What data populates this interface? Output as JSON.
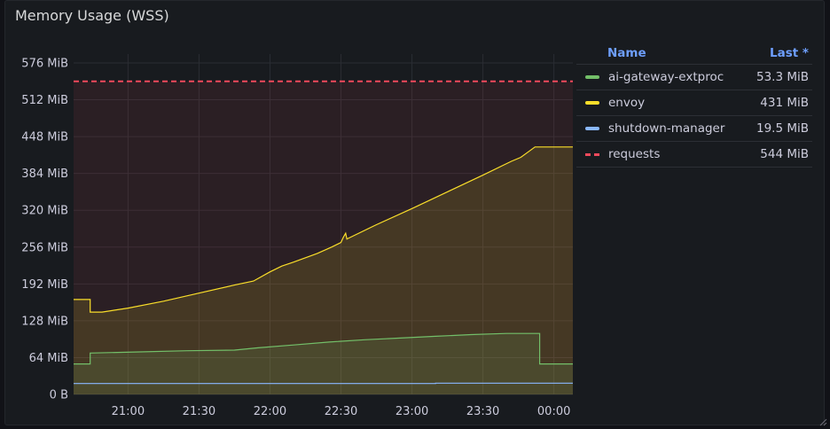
{
  "panel": {
    "title": "Memory Usage (WSS)"
  },
  "legend": {
    "name_header": "Name",
    "last_header": "Last *",
    "items": [
      {
        "name": "ai-gateway-extproc",
        "last": "53.3 MiB",
        "color": "#73bf69",
        "style": "solid"
      },
      {
        "name": "envoy",
        "last": "431 MiB",
        "color": "#fade2a",
        "style": "solid"
      },
      {
        "name": "shutdown-manager",
        "last": "19.5 MiB",
        "color": "#8ab8ff",
        "style": "solid"
      },
      {
        "name": "requests",
        "last": "544 MiB",
        "color": "#f2495c",
        "style": "dashed"
      }
    ]
  },
  "chart_data": {
    "type": "line",
    "title": "Memory Usage (WSS)",
    "ylim": [
      0,
      576
    ],
    "y_unit": "MiB",
    "y_ticks": [
      {
        "v": 0,
        "label": "0 B"
      },
      {
        "v": 64,
        "label": "64 MiB"
      },
      {
        "v": 128,
        "label": "128 MiB"
      },
      {
        "v": 192,
        "label": "192 MiB"
      },
      {
        "v": 256,
        "label": "256 MiB"
      },
      {
        "v": 320,
        "label": "320 MiB"
      },
      {
        "v": 384,
        "label": "384 MiB"
      },
      {
        "v": 448,
        "label": "448 MiB"
      },
      {
        "v": 512,
        "label": "512 MiB"
      },
      {
        "v": 576,
        "label": "576 MiB"
      }
    ],
    "x_ticks": [
      "21:00",
      "21:30",
      "22:00",
      "22:30",
      "23:00",
      "23:30",
      "00:00"
    ],
    "x_tick_minutes": [
      60,
      90,
      120,
      150,
      180,
      210,
      240
    ],
    "xlim_minutes": [
      37,
      248
    ],
    "series": [
      {
        "name": "requests",
        "color": "#f2495c",
        "dashed": true,
        "fill": true,
        "points": [
          [
            37,
            544
          ],
          [
            248,
            544
          ]
        ]
      },
      {
        "name": "envoy",
        "color": "#fade2a",
        "fill": true,
        "points": [
          [
            37,
            165
          ],
          [
            44,
            165
          ],
          [
            44,
            143
          ],
          [
            49,
            143
          ],
          [
            60,
            150
          ],
          [
            75,
            162
          ],
          [
            90,
            176
          ],
          [
            105,
            190
          ],
          [
            113,
            197
          ],
          [
            120,
            213
          ],
          [
            125,
            223
          ],
          [
            130,
            230
          ],
          [
            140,
            245
          ],
          [
            146,
            256
          ],
          [
            150,
            264
          ],
          [
            151,
            273
          ],
          [
            152,
            280
          ],
          [
            152.5,
            270
          ],
          [
            153,
            271
          ],
          [
            165,
            295
          ],
          [
            180,
            323
          ],
          [
            195,
            352
          ],
          [
            210,
            381
          ],
          [
            222,
            405
          ],
          [
            226,
            412
          ],
          [
            230,
            424
          ],
          [
            232,
            430
          ],
          [
            248,
            430
          ]
        ]
      },
      {
        "name": "ai-gateway-extproc",
        "color": "#73bf69",
        "fill": true,
        "points": [
          [
            37,
            53
          ],
          [
            44,
            53
          ],
          [
            44,
            72
          ],
          [
            65,
            74
          ],
          [
            85,
            76
          ],
          [
            105,
            77
          ],
          [
            115,
            81
          ],
          [
            130,
            86
          ],
          [
            145,
            91
          ],
          [
            160,
            95
          ],
          [
            175,
            98
          ],
          [
            190,
            101
          ],
          [
            205,
            104
          ],
          [
            220,
            106
          ],
          [
            234,
            106
          ],
          [
            234,
            53
          ],
          [
            248,
            53
          ]
        ]
      },
      {
        "name": "shutdown-manager",
        "color": "#8ab8ff",
        "fill": false,
        "points": [
          [
            37,
            19
          ],
          [
            190,
            19
          ],
          [
            190,
            19.5
          ],
          [
            248,
            19.5
          ]
        ]
      }
    ]
  }
}
